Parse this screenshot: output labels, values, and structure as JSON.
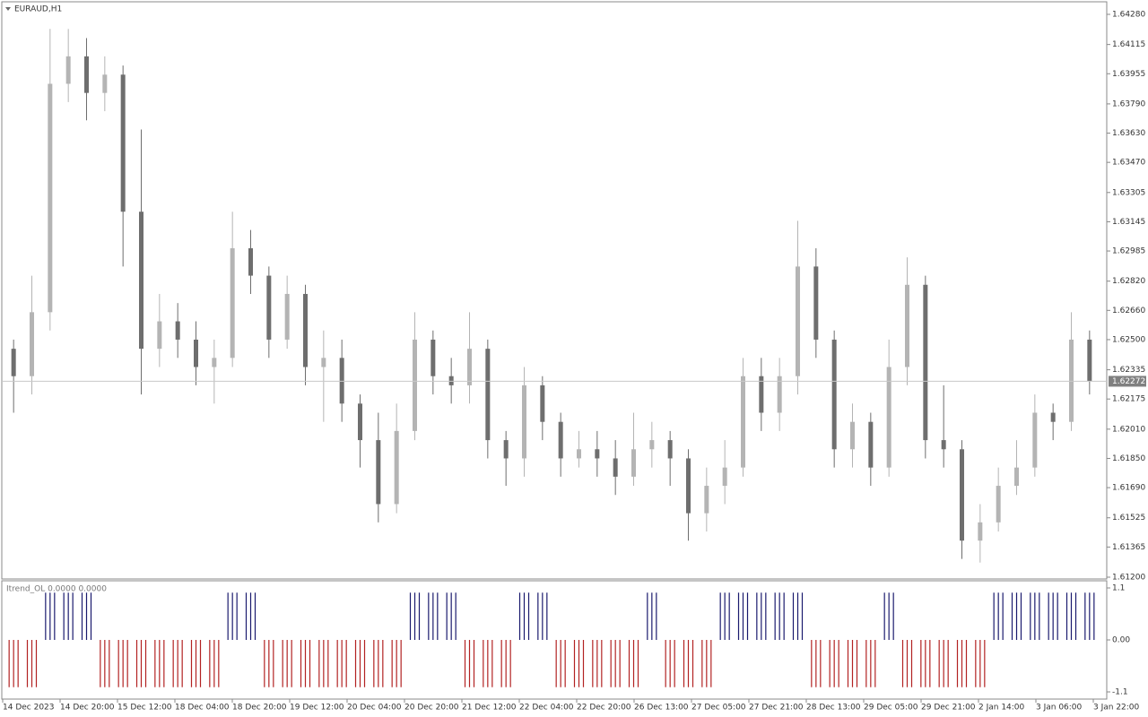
{
  "chart_data": [
    {
      "type": "candlestick",
      "title": "EURAUD,H1",
      "open": [
        1.6245,
        1.623,
        1.6265,
        1.639,
        1.6405,
        1.6385,
        1.6395,
        1.632,
        1.6245,
        1.626,
        1.625,
        1.6235,
        1.624,
        1.63,
        1.6285,
        1.625,
        1.6275,
        1.6235,
        1.624,
        1.6215,
        1.6195,
        1.616,
        1.62,
        1.625,
        1.623,
        1.6225,
        1.6245,
        1.6195,
        1.6185,
        1.6225,
        1.6205,
        1.6185,
        1.619,
        1.6185,
        1.6175,
        1.619,
        1.6195,
        1.6185,
        1.6155,
        1.617,
        1.618,
        1.623,
        1.621,
        1.623,
        1.629,
        1.625,
        1.619,
        1.6205,
        1.618,
        1.6235,
        1.628,
        1.6195,
        1.619,
        1.614,
        1.615,
        1.617,
        1.618,
        1.621,
        1.6205,
        1.625
      ],
      "high": [
        1.625,
        1.6285,
        1.642,
        1.642,
        1.6415,
        1.6405,
        1.64,
        1.6365,
        1.6275,
        1.627,
        1.626,
        1.625,
        1.632,
        1.631,
        1.629,
        1.6285,
        1.628,
        1.6255,
        1.625,
        1.622,
        1.621,
        1.6215,
        1.6265,
        1.6255,
        1.624,
        1.6265,
        1.625,
        1.62,
        1.6235,
        1.623,
        1.621,
        1.62,
        1.62,
        1.6195,
        1.621,
        1.6205,
        1.62,
        1.619,
        1.618,
        1.6195,
        1.624,
        1.624,
        1.624,
        1.6315,
        1.63,
        1.6255,
        1.6215,
        1.621,
        1.625,
        1.6295,
        1.6285,
        1.6225,
        1.6195,
        1.616,
        1.618,
        1.6195,
        1.622,
        1.6215,
        1.6265,
        1.6255
      ],
      "low": [
        1.621,
        1.622,
        1.6255,
        1.638,
        1.637,
        1.6375,
        1.629,
        1.622,
        1.6235,
        1.624,
        1.6225,
        1.6215,
        1.6235,
        1.6275,
        1.624,
        1.6245,
        1.6225,
        1.6205,
        1.6205,
        1.618,
        1.615,
        1.6155,
        1.6195,
        1.622,
        1.6215,
        1.6215,
        1.6185,
        1.617,
        1.6175,
        1.6195,
        1.6175,
        1.618,
        1.6175,
        1.6165,
        1.617,
        1.618,
        1.617,
        1.614,
        1.6145,
        1.616,
        1.6175,
        1.62,
        1.62,
        1.622,
        1.624,
        1.618,
        1.618,
        1.617,
        1.6175,
        1.6225,
        1.6185,
        1.618,
        1.613,
        1.6128,
        1.6145,
        1.6165,
        1.6175,
        1.6195,
        1.62,
        1.622
      ],
      "close": [
        1.623,
        1.6265,
        1.639,
        1.6405,
        1.6385,
        1.6395,
        1.632,
        1.6245,
        1.626,
        1.625,
        1.6235,
        1.624,
        1.63,
        1.6285,
        1.625,
        1.6275,
        1.6235,
        1.624,
        1.6215,
        1.6195,
        1.616,
        1.62,
        1.625,
        1.623,
        1.6225,
        1.6245,
        1.6195,
        1.6185,
        1.6225,
        1.6205,
        1.6185,
        1.619,
        1.6185,
        1.6175,
        1.619,
        1.6195,
        1.6185,
        1.6155,
        1.617,
        1.618,
        1.623,
        1.621,
        1.623,
        1.629,
        1.625,
        1.619,
        1.6205,
        1.618,
        1.6235,
        1.628,
        1.6195,
        1.619,
        1.614,
        1.615,
        1.617,
        1.618,
        1.621,
        1.6205,
        1.625,
        1.62272
      ],
      "up_color": "#b4b4b4",
      "down_color": "#6e6e6e",
      "ylim": [
        1.612,
        1.6428
      ],
      "yticks": [
        {
          "value": 1.6428,
          "label": "1.64280"
        },
        1.64115,
        1.63955,
        {
          "value": 1.6379,
          "label": "1.63790"
        },
        {
          "value": 1.6363,
          "label": "1.63630"
        },
        {
          "value": 1.6347,
          "label": "1.63470"
        },
        1.63305,
        1.63145,
        1.62985,
        {
          "value": 1.6282,
          "label": "1.62820"
        },
        {
          "value": 1.6266,
          "label": "1.62660"
        },
        {
          "value": 1.625,
          "label": "1.62500"
        },
        1.62335,
        1.62175,
        {
          "value": 1.6201,
          "label": "1.62010"
        },
        {
          "value": 1.6185,
          "label": "1.61850"
        },
        {
          "value": 1.6169,
          "label": "1.61690"
        },
        1.61525,
        1.61365,
        {
          "value": 1.612,
          "label": "1.61200"
        }
      ],
      "current_price": 1.62272,
      "x_labels": [
        "14 Dec 2023",
        "14 Dec 20:00",
        "15 Dec 12:00",
        "18 Dec 04:00",
        "18 Dec 20:00",
        "19 Dec 12:00",
        "20 Dec 04:00",
        "20 Dec 20:00",
        "21 Dec 12:00",
        "22 Dec 04:00",
        "22 Dec 20:00",
        "26 Dec 13:00",
        "27 Dec 05:00",
        "27 Dec 21:00",
        "28 Dec 13:00",
        "29 Dec 05:00",
        "29 Dec 21:00",
        "2 Jan 14:00",
        "3 Jan 06:00",
        "3 Jan 22:00"
      ]
    },
    {
      "type": "histogram",
      "title": "Itrend_OL 0.0000 0.0000",
      "values": [
        -1,
        -1,
        1,
        1,
        1,
        -1,
        -1,
        -1,
        -1,
        -1,
        -1,
        -1,
        1,
        1,
        -1,
        -1,
        -1,
        -1,
        -1,
        -1,
        -1,
        -1,
        1,
        1,
        1,
        -1,
        -1,
        -1,
        1,
        1,
        -1,
        -1,
        -1,
        -1,
        -1,
        1,
        -1,
        -1,
        -1,
        1,
        1,
        1,
        1,
        1,
        -1,
        -1,
        -1,
        -1,
        1,
        -1,
        -1,
        -1,
        -1,
        -1,
        1,
        1,
        1,
        1,
        1,
        1
      ],
      "pos_color": "#1a1a6e",
      "neg_color": "#b22222",
      "ylim": [
        -1.1,
        1.1
      ],
      "yticks": [
        1.1,
        {
          "value": 0,
          "label": "0.00"
        },
        -1.1
      ]
    }
  ]
}
